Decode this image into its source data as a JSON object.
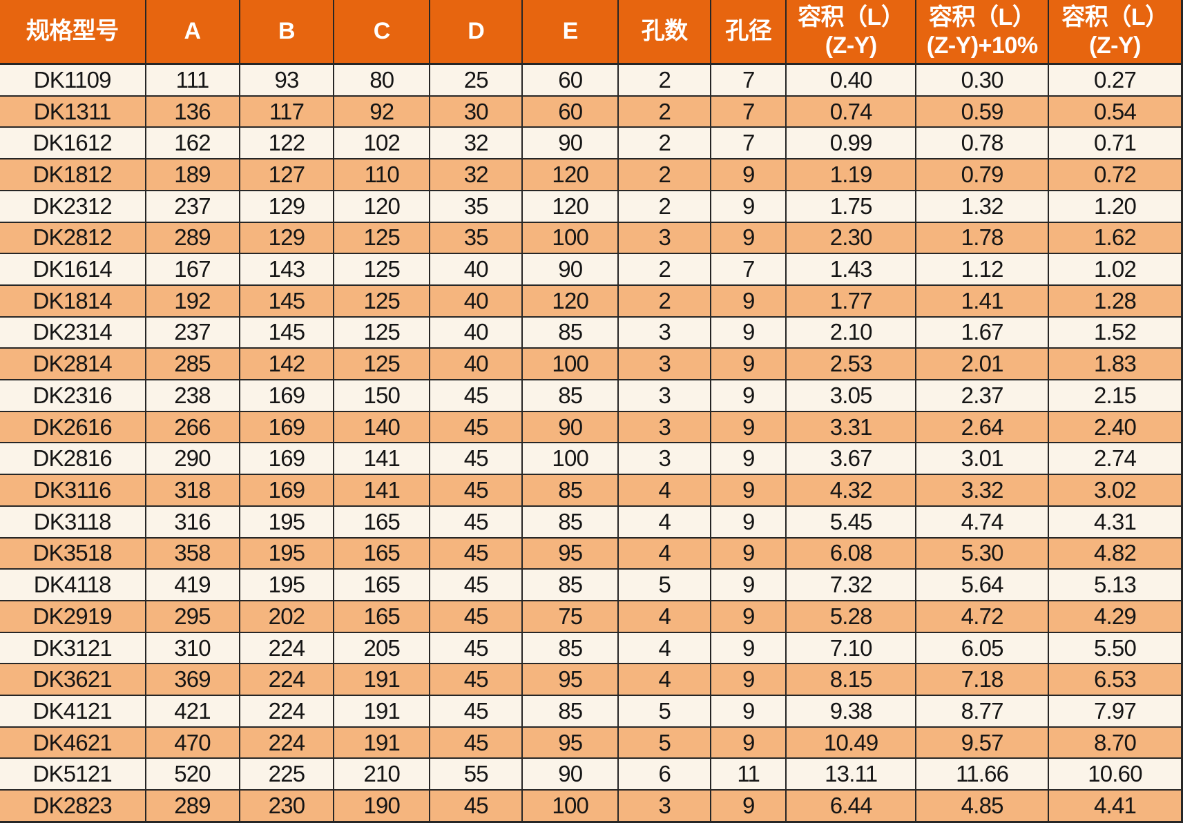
{
  "colors": {
    "header_bg": "#E7650F",
    "header_text": "#FFFFFF",
    "row_cream": "#FBF4E9",
    "row_orange": "#F5B57E",
    "border": "#262626",
    "cell_text": "#151515"
  },
  "chart_data": {
    "type": "table",
    "columns": [
      "规格型号",
      "A",
      "B",
      "C",
      "D",
      "E",
      "孔数",
      "孔径",
      "容积（L）\n(Z-Y)",
      "容积（L）\n(Z-Y)+10%",
      "容积（L）\n(Z-Y)"
    ],
    "rows": [
      [
        "DK1109",
        "111",
        "93",
        "80",
        "25",
        "60",
        "2",
        "7",
        "0.40",
        "0.30",
        "0.27"
      ],
      [
        "DK1311",
        "136",
        "117",
        "92",
        "30",
        "60",
        "2",
        "7",
        "0.74",
        "0.59",
        "0.54"
      ],
      [
        "DK1612",
        "162",
        "122",
        "102",
        "32",
        "90",
        "2",
        "7",
        "0.99",
        "0.78",
        "0.71"
      ],
      [
        "DK1812",
        "189",
        "127",
        "110",
        "32",
        "120",
        "2",
        "9",
        "1.19",
        "0.79",
        "0.72"
      ],
      [
        "DK2312",
        "237",
        "129",
        "120",
        "35",
        "120",
        "2",
        "9",
        "1.75",
        "1.32",
        "1.20"
      ],
      [
        "DK2812",
        "289",
        "129",
        "125",
        "35",
        "100",
        "3",
        "9",
        "2.30",
        "1.78",
        "1.62"
      ],
      [
        "DK1614",
        "167",
        "143",
        "125",
        "40",
        "90",
        "2",
        "7",
        "1.43",
        "1.12",
        "1.02"
      ],
      [
        "DK1814",
        "192",
        "145",
        "125",
        "40",
        "120",
        "2",
        "9",
        "1.77",
        "1.41",
        "1.28"
      ],
      [
        "DK2314",
        "237",
        "145",
        "125",
        "40",
        "85",
        "3",
        "9",
        "2.10",
        "1.67",
        "1.52"
      ],
      [
        "DK2814",
        "285",
        "142",
        "125",
        "40",
        "100",
        "3",
        "9",
        "2.53",
        "2.01",
        "1.83"
      ],
      [
        "DK2316",
        "238",
        "169",
        "150",
        "45",
        "85",
        "3",
        "9",
        "3.05",
        "2.37",
        "2.15"
      ],
      [
        "DK2616",
        "266",
        "169",
        "140",
        "45",
        "90",
        "3",
        "9",
        "3.31",
        "2.64",
        "2.40"
      ],
      [
        "DK2816",
        "290",
        "169",
        "141",
        "45",
        "100",
        "3",
        "9",
        "3.67",
        "3.01",
        "2.74"
      ],
      [
        "DK3116",
        "318",
        "169",
        "141",
        "45",
        "85",
        "4",
        "9",
        "4.32",
        "3.32",
        "3.02"
      ],
      [
        "DK3118",
        "316",
        "195",
        "165",
        "45",
        "85",
        "4",
        "9",
        "5.45",
        "4.74",
        "4.31"
      ],
      [
        "DK3518",
        "358",
        "195",
        "165",
        "45",
        "95",
        "4",
        "9",
        "6.08",
        "5.30",
        "4.82"
      ],
      [
        "DK4118",
        "419",
        "195",
        "165",
        "45",
        "85",
        "5",
        "9",
        "7.32",
        "5.64",
        "5.13"
      ],
      [
        "DK2919",
        "295",
        "202",
        "165",
        "45",
        "75",
        "4",
        "9",
        "5.28",
        "4.72",
        "4.29"
      ],
      [
        "DK3121",
        "310",
        "224",
        "205",
        "45",
        "85",
        "4",
        "9",
        "7.10",
        "6.05",
        "5.50"
      ],
      [
        "DK3621",
        "369",
        "224",
        "191",
        "45",
        "95",
        "4",
        "9",
        "8.15",
        "7.18",
        "6.53"
      ],
      [
        "DK4121",
        "421",
        "224",
        "191",
        "45",
        "85",
        "5",
        "9",
        "9.38",
        "8.77",
        "7.97"
      ],
      [
        "DK4621",
        "470",
        "224",
        "191",
        "45",
        "95",
        "5",
        "9",
        "10.49",
        "9.57",
        "8.70"
      ],
      [
        "DK5121",
        "520",
        "225",
        "210",
        "55",
        "90",
        "6",
        "11",
        "13.11",
        "11.66",
        "10.60"
      ],
      [
        "DK2823",
        "289",
        "230",
        "190",
        "45",
        "100",
        "3",
        "9",
        "6.44",
        "4.85",
        "4.41"
      ]
    ]
  }
}
